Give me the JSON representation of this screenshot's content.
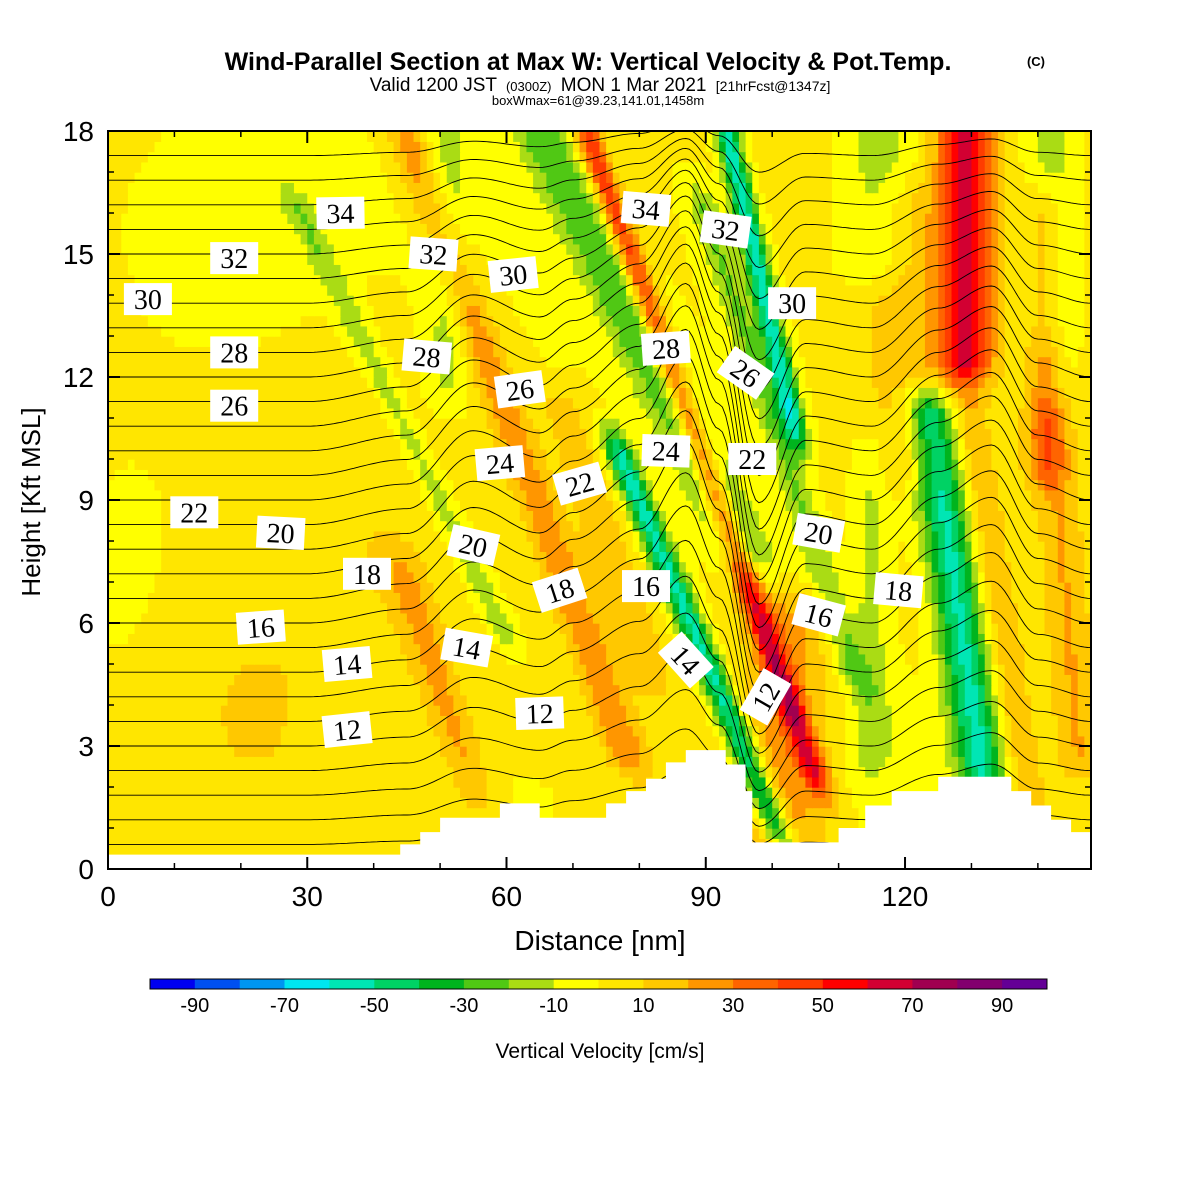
{
  "chart_data": {
    "type": "heatmap",
    "title": "Wind-Parallel Section at Max W: Vertical Velocity & Pot.Temp.",
    "title_mark": "(C)",
    "subtitle_prefix": "Valid 1200 JST",
    "subtitle_utc": "(0300Z)",
    "subtitle_date": "MON 1 Mar 2021",
    "subtitle_fcst": "[21hrFcst@1347z]",
    "subtitle_box": "boxWmax=61@39.23,141.01,1458m",
    "xlabel": "Distance [nm]",
    "ylabel": "Height [Kft MSL]",
    "xlim": [
      0,
      148
    ],
    "ylim": [
      0,
      18
    ],
    "x_ticks": [
      0,
      30,
      60,
      90,
      120
    ],
    "y_ticks": [
      0,
      3,
      6,
      9,
      12,
      15,
      18
    ],
    "x_tick_labels": [
      "0",
      "30",
      "60",
      "90",
      "120"
    ],
    "y_tick_labels": [
      "0",
      "3",
      "6",
      "9",
      "12",
      "15",
      "18"
    ],
    "colorbar": {
      "label": "Vertical Velocity [cm/s]",
      "min": -100,
      "max": 100,
      "step": 10,
      "tick_labels": [
        "-90",
        "-70",
        "-50",
        "-30",
        "-10",
        "10",
        "30",
        "50",
        "70",
        "90"
      ],
      "tick_values": [
        -90,
        -70,
        -50,
        -30,
        -10,
        10,
        30,
        50,
        70,
        90
      ],
      "colors": [
        "#0000f0",
        "#0050f0",
        "#0096f0",
        "#00e6f0",
        "#00e6b4",
        "#00d264",
        "#00b41e",
        "#50c814",
        "#aadc14",
        "#ffff00",
        "#ffe600",
        "#ffc800",
        "#ff9600",
        "#ff6400",
        "#ff3c00",
        "#ff0000",
        "#d20032",
        "#a00050",
        "#82006e",
        "#640096"
      ]
    },
    "velocity_features": [
      {
        "x": 3,
        "z": 7,
        "sx": 14,
        "sz": 5,
        "w": -6
      },
      {
        "x": 25,
        "z": 16,
        "sx": 30,
        "sz": 4,
        "w": -8
      },
      {
        "x": 20,
        "z": 4,
        "sx": 12,
        "sz": 3,
        "w": 7
      },
      {
        "x": 40,
        "z": 9,
        "sx": 12,
        "sz": 6,
        "w": 6
      },
      {
        "x": 80,
        "z": 12,
        "sx": 45,
        "sz": 9,
        "w": -5
      },
      {
        "x": 60,
        "z": 1.5,
        "sx": 14,
        "sz": 1.5,
        "w": -5
      },
      {
        "x": 118,
        "z": 2.5,
        "sx": 12,
        "sz": 2.5,
        "w": -8
      },
      {
        "x": 50,
        "z": 9,
        "lean": -3.0,
        "half": 2.2,
        "zmin": 6,
        "zmax": 16,
        "w": -18
      },
      {
        "x": 51,
        "z": 15.5,
        "lean": 0,
        "half": 3.5,
        "zmin": 12,
        "zmax": 18,
        "w": -15
      },
      {
        "x": 50,
        "z": 4.5,
        "lean": -2.0,
        "half": 3,
        "zmin": 2,
        "zmax": 7,
        "w": 18
      },
      {
        "x": 58,
        "z": 12,
        "lean": -2.2,
        "half": 3.2,
        "zmin": 3,
        "zmax": 18,
        "w": 26
      },
      {
        "x": 74,
        "z": 15,
        "lean": -3.0,
        "half": 4.5,
        "zmin": 8,
        "zmax": 18,
        "w": -30
      },
      {
        "x": 73,
        "z": 9,
        "lean": -2.0,
        "half": 3.5,
        "zmin": 5,
        "zmax": 11,
        "w": 16
      },
      {
        "x": 89,
        "z": 5.5,
        "lean": -2.6,
        "half": 2.2,
        "zmin": 1,
        "zmax": 10,
        "w": -55
      },
      {
        "x": 94,
        "z": 8,
        "lean": -2.2,
        "half": 2.0,
        "zmin": 2.5,
        "zmax": 18,
        "w": 50
      },
      {
        "x": 96,
        "z": 16,
        "lean": -1.4,
        "half": 1.8,
        "zmin": 11,
        "zmax": 18,
        "w": -58
      },
      {
        "x": 100,
        "z": 11,
        "lean": -2.0,
        "half": 2.5,
        "zmin": 5,
        "zmax": 16,
        "w": -22
      },
      {
        "x": 102,
        "z": 3,
        "lean": 0,
        "half": 6,
        "zmin": 0.5,
        "zmax": 6,
        "w": 22
      },
      {
        "x": 115,
        "z": 7,
        "lean": 0,
        "half": 3,
        "zmin": 3,
        "zmax": 10,
        "w": -15
      },
      {
        "x": 128,
        "z": 6.5,
        "lean": -0.9,
        "half": 3.8,
        "zmin": 1.5,
        "zmax": 11,
        "w": -56
      },
      {
        "x": 134,
        "z": 6,
        "lean": -0.9,
        "half": 3.0,
        "zmin": 2,
        "zmax": 11,
        "w": 16
      },
      {
        "x": 129,
        "z": 16.5,
        "lean": 0,
        "half": 4,
        "zmin": 12.5,
        "zmax": 18,
        "w": 58
      },
      {
        "x": 120,
        "z": 13.5,
        "lean": 0,
        "half": 6,
        "zmin": 10,
        "zmax": 16,
        "w": 14
      },
      {
        "x": 116,
        "z": 17,
        "lean": 0,
        "half": 5,
        "zmin": 15,
        "zmax": 18,
        "w": -18
      },
      {
        "x": 142,
        "z": 15,
        "lean": 0,
        "half": 4,
        "zmin": 12,
        "zmax": 18,
        "w": -20
      },
      {
        "x": 144,
        "z": 7,
        "lean": -0.5,
        "half": 3,
        "zmin": 3,
        "zmax": 12,
        "w": 16
      },
      {
        "x": 141,
        "z": 16,
        "lean": 0,
        "half": 3,
        "zmin": 10,
        "zmax": 16,
        "w": 24
      }
    ],
    "terrain": [
      [
        0,
        0.35
      ],
      [
        42,
        0.35
      ],
      [
        44,
        0.6
      ],
      [
        47,
        0.9
      ],
      [
        50,
        1.25
      ],
      [
        59,
        1.6
      ],
      [
        65,
        1.25
      ],
      [
        70,
        1.25
      ],
      [
        75,
        1.6
      ],
      [
        78,
        1.9
      ],
      [
        81,
        2.2
      ],
      [
        84,
        2.6
      ],
      [
        87,
        2.9
      ],
      [
        90,
        2.9
      ],
      [
        93,
        2.55
      ],
      [
        96,
        1.9
      ],
      [
        97,
        0.65
      ],
      [
        105,
        0.65
      ],
      [
        110,
        1.0
      ],
      [
        114,
        1.55
      ],
      [
        118,
        1.9
      ],
      [
        125,
        2.25
      ],
      [
        132,
        2.25
      ],
      [
        136,
        1.9
      ],
      [
        139,
        1.55
      ],
      [
        142,
        1.2
      ],
      [
        145,
        0.9
      ],
      [
        148,
        0.6
      ]
    ],
    "theta_contours": {
      "levels_start": 5,
      "levels_step": 1,
      "count": 30,
      "base_surface": 5.0,
      "base_top": 35.0,
      "anchor_x": [
        0,
        15,
        30,
        45,
        55,
        65,
        70,
        80,
        87,
        92,
        98,
        105,
        115,
        125,
        133,
        140,
        148
      ],
      "anchor_shift": [
        0,
        0,
        0,
        0.3,
        1.3,
        0.8,
        1.2,
        2.0,
        3.2,
        1.8,
        -1.5,
        0.2,
        0,
        1.0,
        1.5,
        0.3,
        0
      ]
    },
    "contour_labels": [
      {
        "text": "34",
        "x": 35,
        "z": 16.0,
        "angle": -1
      },
      {
        "text": "32",
        "x": 19,
        "z": 14.9,
        "angle": 0
      },
      {
        "text": "30",
        "x": 6,
        "z": 13.9,
        "angle": 0
      },
      {
        "text": "28",
        "x": 19,
        "z": 12.6,
        "angle": 0
      },
      {
        "text": "26",
        "x": 19,
        "z": 11.3,
        "angle": 0
      },
      {
        "text": "22",
        "x": 13,
        "z": 8.7,
        "angle": 0
      },
      {
        "text": "20",
        "x": 26,
        "z": 8.2,
        "angle": 3
      },
      {
        "text": "18",
        "x": 39,
        "z": 7.2,
        "angle": 0
      },
      {
        "text": "16",
        "x": 23,
        "z": 5.9,
        "angle": -4
      },
      {
        "text": "14",
        "x": 36,
        "z": 5.0,
        "angle": -5
      },
      {
        "text": "12",
        "x": 36,
        "z": 3.4,
        "angle": -6
      },
      {
        "text": "32",
        "x": 49,
        "z": 15.0,
        "angle": 4
      },
      {
        "text": "28",
        "x": 48,
        "z": 12.5,
        "angle": 5
      },
      {
        "text": "30",
        "x": 61,
        "z": 14.5,
        "angle": -6
      },
      {
        "text": "26",
        "x": 62,
        "z": 11.7,
        "angle": -8
      },
      {
        "text": "24",
        "x": 59,
        "z": 9.9,
        "angle": -5
      },
      {
        "text": "20",
        "x": 55,
        "z": 7.9,
        "angle": 13
      },
      {
        "text": "14",
        "x": 54,
        "z": 5.4,
        "angle": 10
      },
      {
        "text": "22",
        "x": 71,
        "z": 9.4,
        "angle": -16
      },
      {
        "text": "18",
        "x": 68,
        "z": 6.8,
        "angle": -18
      },
      {
        "text": "12",
        "x": 65,
        "z": 3.8,
        "angle": -2
      },
      {
        "text": "34",
        "x": 81,
        "z": 16.1,
        "angle": 5
      },
      {
        "text": "28",
        "x": 84,
        "z": 12.7,
        "angle": -4
      },
      {
        "text": "24",
        "x": 84,
        "z": 10.2,
        "angle": 2
      },
      {
        "text": "16",
        "x": 81,
        "z": 6.9,
        "angle": 0
      },
      {
        "text": "14",
        "x": 87,
        "z": 5.1,
        "angle": 48
      },
      {
        "text": "32",
        "x": 93,
        "z": 15.6,
        "angle": 8
      },
      {
        "text": "26",
        "x": 96,
        "z": 12.1,
        "angle": 35
      },
      {
        "text": "22",
        "x": 97,
        "z": 10.0,
        "angle": 0
      },
      {
        "text": "30",
        "x": 103,
        "z": 13.8,
        "angle": 0
      },
      {
        "text": "12",
        "x": 99,
        "z": 4.2,
        "angle": -60
      },
      {
        "text": "20",
        "x": 107,
        "z": 8.2,
        "angle": 10
      },
      {
        "text": "16",
        "x": 107,
        "z": 6.2,
        "angle": 15
      },
      {
        "text": "18",
        "x": 119,
        "z": 6.8,
        "angle": 5
      }
    ]
  }
}
